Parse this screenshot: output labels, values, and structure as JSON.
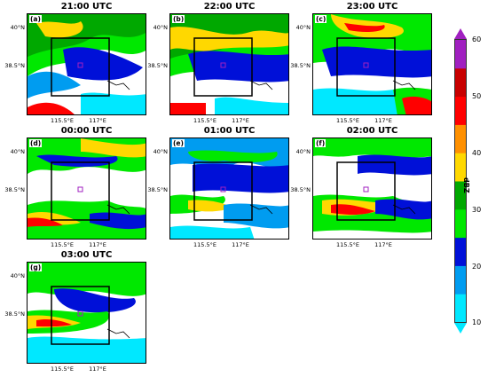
{
  "panels": [
    {
      "tag": "(a)",
      "title": "21:00 UTC"
    },
    {
      "tag": "(b)",
      "title": "22:00 UTC"
    },
    {
      "tag": "(c)",
      "title": "23:00 UTC"
    },
    {
      "tag": "(d)",
      "title": "00:00 UTC"
    },
    {
      "tag": "(e)",
      "title": "01:00 UTC"
    },
    {
      "tag": "(f)",
      "title": "02:00 UTC"
    },
    {
      "tag": "(g)",
      "title": "03:00 UTC"
    }
  ],
  "axes": {
    "y_top": "40°N",
    "y_mid": "38.5°N",
    "x_left": "115.5°E",
    "x_right": "117°E"
  },
  "colorbar": {
    "label": "dBZ",
    "ticks": [
      "10",
      "20",
      "30",
      "40",
      "50",
      "60"
    ],
    "colors": [
      "#00e8ff",
      "#009cf0",
      "#0010d8",
      "#00e800",
      "#00a800",
      "#ffd800",
      "#ff9000",
      "#ff0000",
      "#c80000",
      "#a020c0"
    ]
  }
}
